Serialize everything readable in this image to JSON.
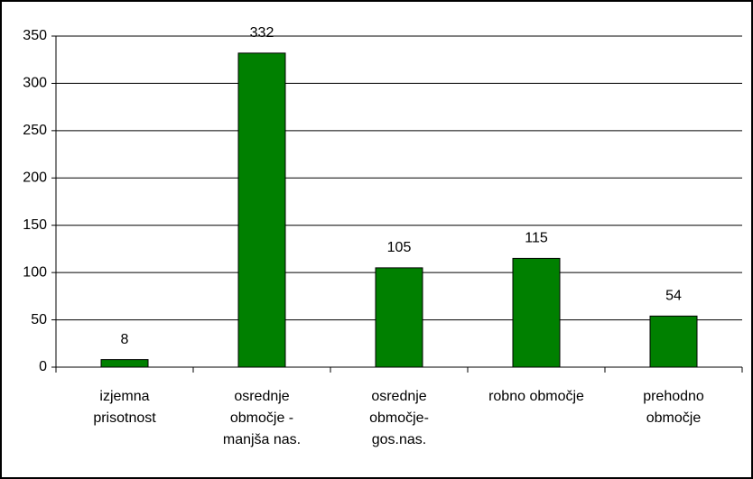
{
  "chart_data": {
    "type": "bar",
    "categories": [
      "izjemna prisotnost",
      "osrednje območje - manjša nas.",
      "osrednje območje-gos.nas.",
      "robno območje",
      "prehodno območje"
    ],
    "values": [
      8,
      332,
      105,
      115,
      54
    ],
    "color": "#008000",
    "ylim": [
      0,
      350
    ],
    "yticks": [
      0,
      50,
      100,
      150,
      200,
      250,
      300,
      350
    ],
    "grid": true
  }
}
